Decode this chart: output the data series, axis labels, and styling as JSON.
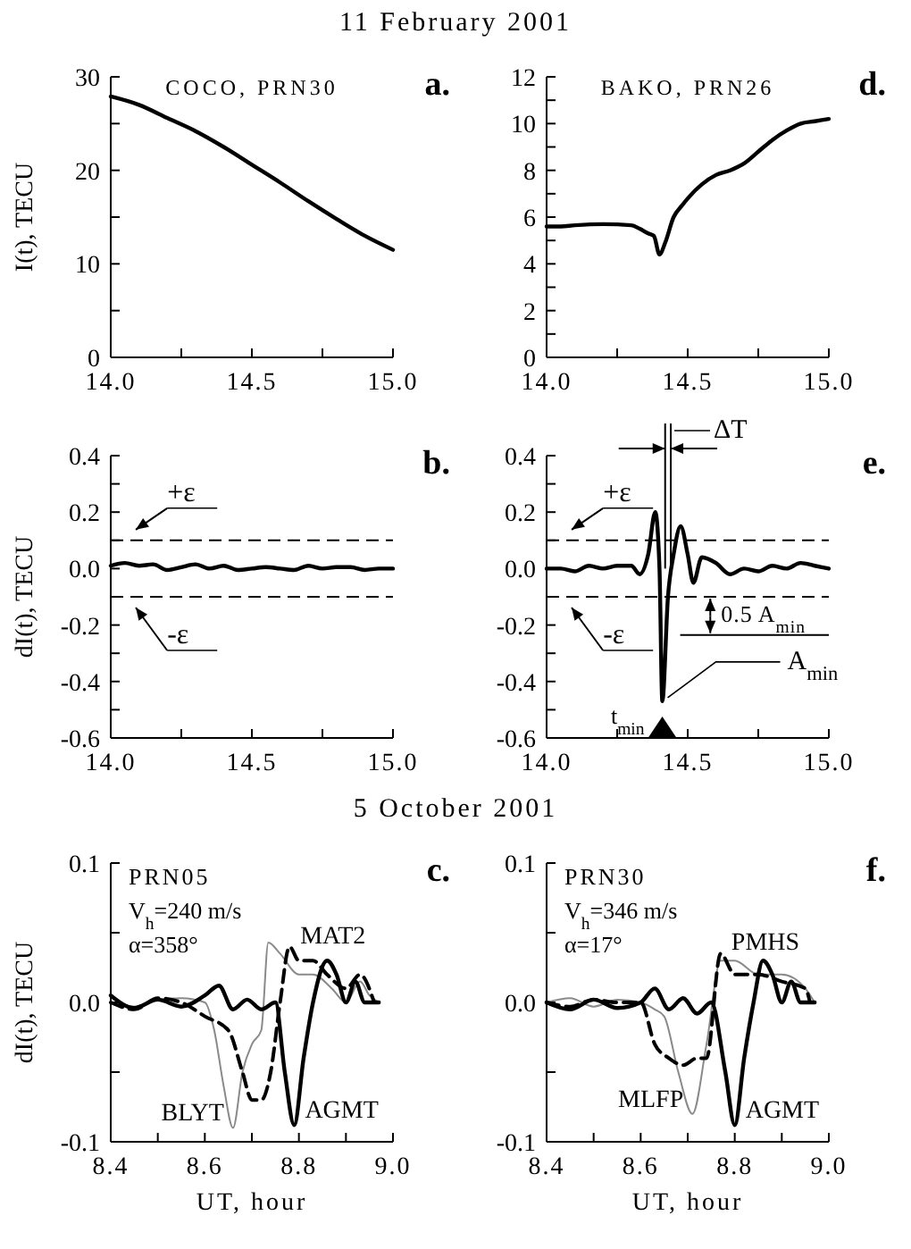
{
  "chart_data": [
    {
      "type": "line",
      "title": "11 February 2001",
      "subtitle": "COCO, PRN30",
      "ylabel": "I(t), TECU",
      "annotations": [
        "a."
      ],
      "grid": false,
      "xlim": [
        14,
        15
      ],
      "ylim": [
        0,
        30
      ],
      "xticks": [
        {
          "value": 14,
          "label": "14.0"
        },
        {
          "value": 14.25,
          "label": null
        },
        {
          "value": 14.5,
          "label": "14.5"
        },
        {
          "value": 14.75,
          "label": null
        },
        {
          "value": 15,
          "label": "15.0"
        }
      ],
      "yticks": [
        0,
        {
          "value": 5,
          "label": null
        },
        10,
        {
          "value": 15,
          "label": null
        },
        20,
        {
          "value": 25,
          "label": null
        },
        30
      ],
      "series": [
        {
          "color": "#000000",
          "line_style": "solid",
          "x": [
            14.0,
            14.1,
            14.2,
            14.3,
            14.4,
            14.5,
            14.6,
            14.7,
            14.8,
            14.9,
            15.0
          ],
          "values": [
            27.9,
            27.0,
            25.6,
            24.2,
            22.5,
            20.6,
            18.7,
            16.7,
            14.8,
            13.0,
            11.5
          ]
        }
      ]
    },
    {
      "type": "line",
      "subtitle": "BAKO, PRN26",
      "annotations": [
        "d."
      ],
      "grid": false,
      "xlim": [
        14,
        15
      ],
      "ylim": [
        0,
        12
      ],
      "xticks": [
        {
          "value": 14,
          "label": "14.0"
        },
        {
          "value": 14.25,
          "label": null
        },
        {
          "value": 14.5,
          "label": "14.5"
        },
        {
          "value": 14.75,
          "label": null
        },
        {
          "value": 15,
          "label": "15.0"
        }
      ],
      "yticks": [
        0,
        {
          "value": 1,
          "label": null
        },
        2,
        {
          "value": 3,
          "label": null
        },
        4,
        {
          "value": 5,
          "label": null
        },
        6,
        {
          "value": 7,
          "label": null
        },
        8,
        {
          "value": 9,
          "label": null
        },
        10,
        {
          "value": 11,
          "label": null
        },
        12
      ],
      "series": [
        {
          "color": "#000000",
          "line_style": "solid",
          "x": [
            14.0,
            14.05,
            14.1,
            14.2,
            14.3,
            14.33,
            14.36,
            14.38,
            14.4,
            14.42,
            14.45,
            14.48,
            14.5,
            14.55,
            14.6,
            14.65,
            14.7,
            14.75,
            14.8,
            14.85,
            14.9,
            14.95,
            15.0
          ],
          "values": [
            5.6,
            5.6,
            5.65,
            5.7,
            5.65,
            5.5,
            5.3,
            5.2,
            4.4,
            4.9,
            6.0,
            6.5,
            6.8,
            7.4,
            7.8,
            8.0,
            8.3,
            8.8,
            9.3,
            9.7,
            10.0,
            10.1,
            10.2
          ]
        }
      ]
    },
    {
      "type": "line",
      "ylabel": "dI(t), TECU",
      "annotations": [
        "b.",
        "+ε",
        "-ε"
      ],
      "grid": false,
      "xlim": [
        14,
        15
      ],
      "ylim": [
        -0.6,
        0.4
      ],
      "xticks": [
        {
          "value": 14,
          "label": "14.0"
        },
        {
          "value": 14.25,
          "label": null
        },
        {
          "value": 14.5,
          "label": "14.5"
        },
        {
          "value": 14.75,
          "label": null
        },
        {
          "value": 15,
          "label": "15.0"
        }
      ],
      "yticks": [
        {
          "value": -0.6,
          "label": "-0.6"
        },
        {
          "value": -0.5,
          "label": null
        },
        {
          "value": -0.4,
          "label": "-0.4"
        },
        {
          "value": -0.3,
          "label": null
        },
        {
          "value": -0.2,
          "label": "-0.2"
        },
        {
          "value": -0.1,
          "label": null
        },
        {
          "value": 0,
          "label": "0.0"
        },
        {
          "value": 0.1,
          "label": null
        },
        {
          "value": 0.2,
          "label": "0.2"
        },
        {
          "value": 0.3,
          "label": null
        },
        {
          "value": 0.4,
          "label": "0.4"
        }
      ],
      "ref_lines": [
        {
          "axis": "y",
          "value": 0.1,
          "line_style": "dashed",
          "color": "#000000"
        },
        {
          "axis": "y",
          "value": -0.1,
          "line_style": "dashed",
          "color": "#000000"
        }
      ],
      "series": [
        {
          "color": "#000000",
          "line_style": "solid",
          "x": [
            14.0,
            14.05,
            14.1,
            14.15,
            14.2,
            14.25,
            14.3,
            14.35,
            14.4,
            14.45,
            14.5,
            14.55,
            14.6,
            14.65,
            14.7,
            14.75,
            14.8,
            14.85,
            14.9,
            14.95,
            15.0
          ],
          "values": [
            0.01,
            0.02,
            0.01,
            0.015,
            -0.005,
            0.005,
            0.015,
            0.0,
            0.01,
            -0.005,
            0.0,
            0.005,
            0.0,
            -0.005,
            0.01,
            0.0,
            0.005,
            0.005,
            -0.005,
            0.0,
            0.0
          ]
        }
      ]
    },
    {
      "type": "line",
      "annotations": [
        "e.",
        "+ε",
        "-ε",
        "ΔT",
        "0.5 A$_{min}$",
        "A$_{min}$",
        "t$_{min}$"
      ],
      "grid": false,
      "xlim": [
        14,
        15
      ],
      "ylim": [
        -0.6,
        0.4
      ],
      "xticks": [
        {
          "value": 14,
          "label": "14.0"
        },
        {
          "value": 14.25,
          "label": null
        },
        {
          "value": 14.5,
          "label": "14.5"
        },
        {
          "value": 14.75,
          "label": null
        },
        {
          "value": 15,
          "label": "15.0"
        }
      ],
      "yticks": [
        {
          "value": -0.6,
          "label": "-0.6"
        },
        {
          "value": -0.5,
          "label": null
        },
        {
          "value": -0.4,
          "label": "-0.4"
        },
        {
          "value": -0.3,
          "label": null
        },
        {
          "value": -0.2,
          "label": "-0.2"
        },
        {
          "value": -0.1,
          "label": null
        },
        {
          "value": 0,
          "label": "0.0"
        },
        {
          "value": 0.1,
          "label": null
        },
        {
          "value": 0.2,
          "label": "0.2"
        },
        {
          "value": 0.3,
          "label": null
        },
        {
          "value": 0.4,
          "label": "0.4"
        }
      ],
      "ref_lines": [
        {
          "axis": "y",
          "value": 0.1,
          "line_style": "dashed",
          "color": "#000000"
        },
        {
          "axis": "y",
          "value": -0.1,
          "line_style": "dashed",
          "color": "#000000"
        },
        {
          "axis": "y",
          "value": -0.235,
          "line_style": "solid",
          "color": "#000000"
        },
        {
          "axis": "x",
          "value": 14.42,
          "line_style": "solid",
          "color": "#000000"
        },
        {
          "axis": "x",
          "value": 14.44,
          "line_style": "solid",
          "color": "#000000"
        }
      ],
      "series": [
        {
          "color": "#000000",
          "line_style": "solid",
          "x": [
            14.0,
            14.05,
            14.1,
            14.15,
            14.2,
            14.25,
            14.3,
            14.33,
            14.36,
            14.385,
            14.4,
            14.41,
            14.43,
            14.45,
            14.475,
            14.5,
            14.52,
            14.55,
            14.6,
            14.65,
            14.7,
            14.75,
            14.8,
            14.85,
            14.9,
            14.95,
            15.0
          ],
          "values": [
            0.0,
            0.0,
            -0.01,
            0.01,
            0.0,
            0.01,
            0.01,
            -0.02,
            0.05,
            0.2,
            0.0,
            -0.47,
            -0.1,
            0.05,
            0.15,
            0.05,
            -0.05,
            0.04,
            0.02,
            -0.02,
            0.0,
            -0.01,
            0.01,
            0.0,
            0.02,
            0.01,
            0.0
          ]
        }
      ]
    },
    {
      "type": "line",
      "title": "5 October 2001",
      "subtitle": "PRN05",
      "ylabel": "dI(t), TECU",
      "xlabel": "UT, hour",
      "annotations": [
        "c.",
        "V$_{h}$=240 m/s",
        "α=358°"
      ],
      "grid": false,
      "xlim": [
        8.4,
        9.0
      ],
      "ylim": [
        -0.1,
        0.1
      ],
      "xticks": [
        8.4,
        {
          "value": 8.5,
          "label": null
        },
        8.6,
        {
          "value": 8.7,
          "label": null
        },
        8.8,
        {
          "value": 8.9,
          "label": null
        },
        {
          "value": 9,
          "label": "9.0"
        }
      ],
      "yticks": [
        -0.1,
        {
          "value": -0.05,
          "label": null
        },
        {
          "value": 0,
          "label": "0.0"
        },
        {
          "value": 0.05,
          "label": null
        },
        0.1
      ],
      "series": [
        {
          "name": "BLYT",
          "color": "#8a8a8a",
          "line_style": "solid",
          "x": [
            8.4,
            8.45,
            8.5,
            8.55,
            8.6,
            8.62,
            8.64,
            8.66,
            8.68,
            8.7,
            8.72,
            8.735,
            8.76,
            8.8,
            8.83,
            8.87,
            8.9,
            8.93,
            8.95,
            8.97
          ],
          "values": [
            0,
            -0.003,
            0.002,
            0.003,
            0,
            -0.02,
            -0.06,
            -0.09,
            -0.05,
            -0.03,
            -0.02,
            0.043,
            0.035,
            0.02,
            0.02,
            0.01,
            0.0,
            0.015,
            0.005,
            0.0
          ]
        },
        {
          "name": "MAT2",
          "color": "#000000",
          "line_style": "dashed",
          "x": [
            8.4,
            8.45,
            8.5,
            8.55,
            8.6,
            8.65,
            8.68,
            8.7,
            8.72,
            8.74,
            8.76,
            8.78,
            8.8,
            8.83,
            8.86,
            8.9,
            8.93,
            8.96
          ],
          "values": [
            0,
            -0.005,
            0.003,
            0,
            -0.01,
            -0.02,
            -0.05,
            -0.07,
            -0.07,
            -0.05,
            0.0,
            0.04,
            0.03,
            0.03,
            0.02,
            0.01,
            0.02,
            0.0
          ]
        },
        {
          "name": "AGMT",
          "color": "#000000",
          "line_style": "solid",
          "x": [
            8.4,
            8.45,
            8.5,
            8.55,
            8.6,
            8.63,
            8.66,
            8.69,
            8.72,
            8.75,
            8.77,
            8.79,
            8.81,
            8.83,
            8.86,
            8.88,
            8.9,
            8.92,
            8.94,
            8.97
          ],
          "values": [
            0.005,
            -0.004,
            0.002,
            -0.003,
            0.005,
            0.012,
            -0.005,
            0.002,
            -0.005,
            0,
            -0.05,
            -0.088,
            -0.04,
            0,
            0.03,
            0.02,
            0,
            0.015,
            0,
            0
          ]
        }
      ]
    },
    {
      "type": "line",
      "subtitle": "PRN30",
      "xlabel": "UT, hour",
      "annotations": [
        "f.",
        "V$_{h}$=346 m/s",
        "α=17°"
      ],
      "grid": false,
      "xlim": [
        8.4,
        9.0
      ],
      "ylim": [
        -0.1,
        0.1
      ],
      "xticks": [
        8.4,
        {
          "value": 8.5,
          "label": null
        },
        8.6,
        {
          "value": 8.7,
          "label": null
        },
        8.8,
        {
          "value": 8.9,
          "label": null
        },
        {
          "value": 9,
          "label": "9.0"
        }
      ],
      "yticks": [
        -0.1,
        {
          "value": -0.05,
          "label": null
        },
        {
          "value": 0,
          "label": "0.0"
        },
        {
          "value": 0.05,
          "label": null
        },
        0.1
      ],
      "series": [
        {
          "name": "MLFP",
          "color": "#8a8a8a",
          "line_style": "solid",
          "x": [
            8.4,
            8.45,
            8.5,
            8.55,
            8.6,
            8.63,
            8.65,
            8.68,
            8.71,
            8.74,
            8.77,
            8.8,
            8.85,
            8.9,
            8.95,
            8.97
          ],
          "values": [
            0,
            0.003,
            -0.003,
            0.002,
            0,
            -0.005,
            -0.01,
            -0.05,
            -0.08,
            -0.03,
            0.03,
            0.03,
            0.02,
            0.02,
            0.01,
            0
          ]
        },
        {
          "name": "PMHS",
          "color": "#000000",
          "line_style": "dashed",
          "x": [
            8.4,
            8.45,
            8.5,
            8.55,
            8.6,
            8.63,
            8.66,
            8.69,
            8.72,
            8.74,
            8.77,
            8.8,
            8.85,
            8.9,
            8.95,
            8.96
          ],
          "values": [
            0,
            -0.003,
            0.002,
            0,
            0,
            -0.03,
            -0.04,
            -0.045,
            -0.04,
            -0.04,
            0.035,
            0.02,
            0.02,
            0.015,
            0.01,
            0
          ]
        },
        {
          "name": "AGMT",
          "color": "#000000",
          "line_style": "solid",
          "x": [
            8.4,
            8.45,
            8.5,
            8.55,
            8.6,
            8.63,
            8.66,
            8.69,
            8.72,
            8.75,
            8.78,
            8.8,
            8.82,
            8.84,
            8.86,
            8.88,
            8.9,
            8.92,
            8.94,
            8.97
          ],
          "values": [
            0,
            -0.005,
            0.002,
            -0.004,
            0,
            0.01,
            -0.005,
            0.003,
            -0.008,
            0,
            -0.05,
            -0.088,
            -0.04,
            0,
            0.03,
            0.02,
            0,
            0.015,
            0,
            0
          ]
        }
      ]
    }
  ]
}
